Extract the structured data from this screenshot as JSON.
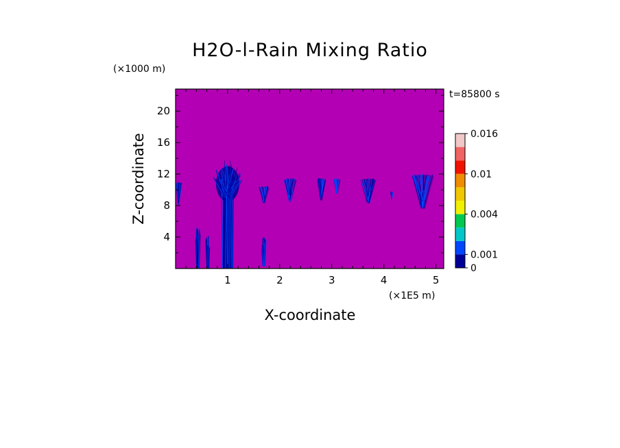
{
  "chart_data": {
    "type": "heatmap",
    "title": "H2O-l-Rain Mixing Ratio",
    "xlabel": "X-coordinate",
    "ylabel": "Z-coordinate",
    "x_unit_label": "(×1E5 m)",
    "y_unit_label": "(×1000 m)",
    "time_label": "t=85800 s",
    "xlim": [
      0,
      5.15
    ],
    "ylim": [
      0,
      22.8
    ],
    "x_ticks": [
      "1",
      "2",
      "3",
      "4",
      "5"
    ],
    "y_ticks": [
      "4",
      "8",
      "12",
      "16",
      "20"
    ],
    "background_value": "0",
    "background_color": "#b400b4",
    "colorbar": {
      "levels": [
        0,
        0.001,
        0.002,
        0.003,
        0.004,
        0.006,
        0.008,
        0.01,
        0.012,
        0.014,
        0.016
      ],
      "colors": [
        "#000096",
        "#0046ff",
        "#00c8c8",
        "#00c850",
        "#f0f000",
        "#f0c800",
        "#f08c00",
        "#f01400",
        "#f06464",
        "#f0c8c8"
      ],
      "tick_labels": [
        "0",
        "0.001",
        "0.004",
        "0.01",
        "0.016"
      ]
    },
    "rain_regions": [
      {
        "x": 0.06,
        "z_top": 11.0,
        "z_bottom": 8.0,
        "width": 0.12
      },
      {
        "x": 0.43,
        "z_top": 5.2,
        "z_bottom": 0.0,
        "width": 0.05
      },
      {
        "x": 0.62,
        "z_top": 4.2,
        "z_bottom": 0.0,
        "width": 0.04
      },
      {
        "x": 1.0,
        "z_top": 13.0,
        "z_bottom": 0.0,
        "width": 0.45
      },
      {
        "x": 1.7,
        "z_top": 4.0,
        "z_bottom": 0.3,
        "width": 0.05
      },
      {
        "x": 1.7,
        "z_top": 10.5,
        "z_bottom": 8.3,
        "width": 0.2
      },
      {
        "x": 2.2,
        "z_top": 11.5,
        "z_bottom": 8.5,
        "width": 0.24
      },
      {
        "x": 2.8,
        "z_top": 11.5,
        "z_bottom": 8.6,
        "width": 0.18
      },
      {
        "x": 3.1,
        "z_top": 11.5,
        "z_bottom": 9.5,
        "width": 0.14
      },
      {
        "x": 3.7,
        "z_top": 11.5,
        "z_bottom": 8.3,
        "width": 0.3
      },
      {
        "x": 4.15,
        "z_top": 9.8,
        "z_bottom": 8.8,
        "width": 0.04
      },
      {
        "x": 4.75,
        "z_top": 12.0,
        "z_bottom": 7.6,
        "width": 0.42
      }
    ]
  }
}
